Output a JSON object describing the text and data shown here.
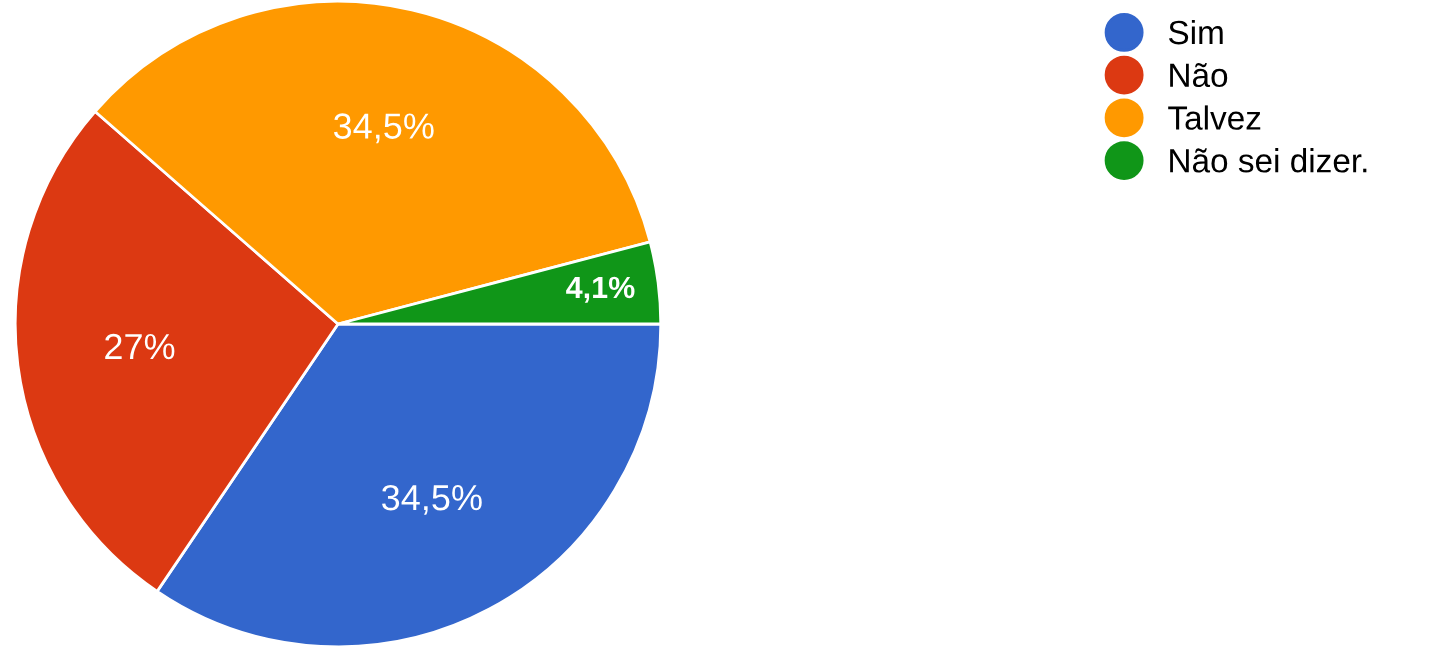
{
  "chart_data": {
    "type": "pie",
    "categories": [
      "Sim",
      "Não",
      "Talvez",
      "Não sei dizer."
    ],
    "values": [
      34.5,
      27,
      34.5,
      4.1
    ],
    "colors": [
      "#3366cc",
      "#dc3912",
      "#ff9900",
      "#109618"
    ],
    "value_labels": [
      "34,5%",
      "27%",
      "34,5%",
      "4,1%"
    ],
    "legend": "right",
    "marker": "circle"
  }
}
